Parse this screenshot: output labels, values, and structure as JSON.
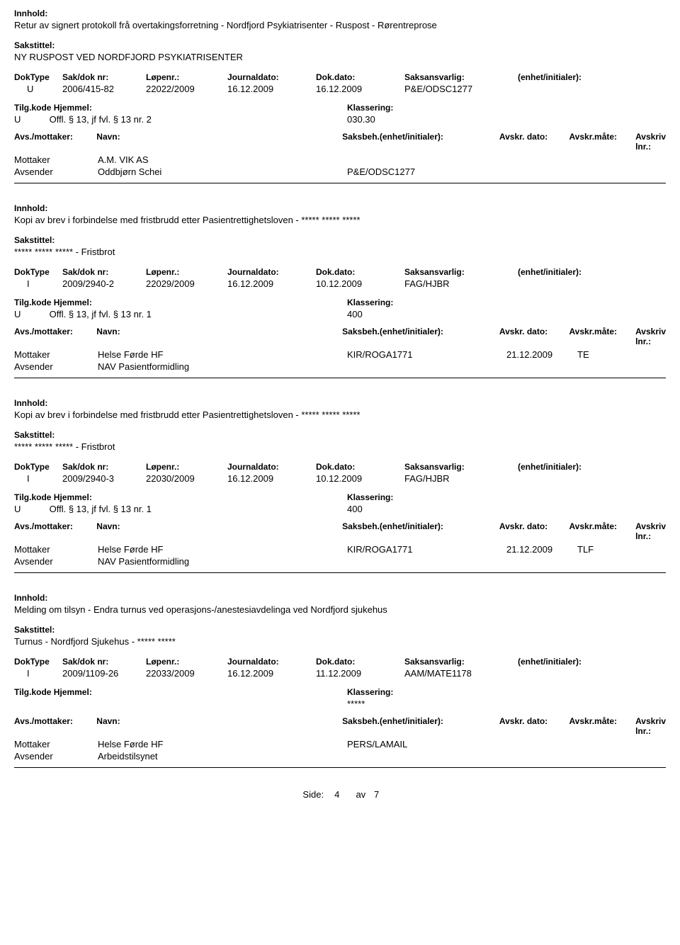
{
  "labels": {
    "innhold": "Innhold:",
    "sakstittel": "Sakstittel:",
    "doktype": "DokType",
    "saknr": "Sak/dok nr:",
    "lopenr": "Løpenr.:",
    "journaldato": "Journaldato:",
    "dokdato": "Dok.dato:",
    "saksansvarlig": "Saksansvarlig:",
    "enhet_initialer": "(enhet/initialer):",
    "tilgkode": "Tilg.kode",
    "hjemmel": "Hjemmel:",
    "klassering": "Klassering:",
    "avs_mottaker": "Avs./mottaker:",
    "navn": "Navn:",
    "saksbeh_ei": "Saksbeh.(enhet/initialer):",
    "avskr_dato": "Avskr. dato:",
    "avskr_maate": "Avskr.måte:",
    "avskriv_lnr": "Avskriv lnr.:",
    "mottaker": "Mottaker",
    "avsender": "Avsender",
    "side": "Side:",
    "av": "av"
  },
  "records": [
    {
      "innhold": "Retur av signert protokoll frå overtakingsforretning - Nordfjord Psykiatrisenter - Ruspost - Rørentreprose",
      "sakstittel": "NY RUSPOST VED NORDFJORD PSYKIATRISENTER",
      "doktype": "U",
      "saknr": "2006/415-82",
      "lopenr": "22022/2009",
      "jdato": "16.12.2009",
      "ddato": "16.12.2009",
      "saksans": "P&E/ODSC1277",
      "tilgkode": "U",
      "hjemmel": "Offl. § 13, jf fvl. § 13 nr. 2",
      "klassering": "030.30",
      "parties": [
        {
          "role": "Mottaker",
          "navn": "A.M. VIK AS",
          "saksbeh": "",
          "adato": "",
          "amaate": ""
        },
        {
          "role": "Avsender",
          "navn": "Oddbjørn  Schei",
          "saksbeh": "P&E/ODSC1277",
          "adato": "",
          "amaate": ""
        }
      ]
    },
    {
      "innhold": "Kopi av brev i forbindelse med fristbrudd etter Pasientrettighetsloven - ***** ***** *****",
      "sakstittel": "***** ***** ***** - Fristbrot",
      "doktype": "I",
      "saknr": "2009/2940-2",
      "lopenr": "22029/2009",
      "jdato": "16.12.2009",
      "ddato": "10.12.2009",
      "saksans": "FAG/HJBR",
      "tilgkode": "U",
      "hjemmel": "Offl. § 13, jf fvl. § 13 nr. 1",
      "klassering": "400",
      "parties": [
        {
          "role": "Mottaker",
          "navn": "Helse Førde HF",
          "saksbeh": "KIR/ROGA1771",
          "adato": "21.12.2009",
          "amaate": "TE"
        },
        {
          "role": "Avsender",
          "navn": "NAV Pasientformidling",
          "saksbeh": "",
          "adato": "",
          "amaate": ""
        }
      ]
    },
    {
      "innhold": "Kopi av brev i forbindelse med fristbrudd etter Pasientrettighetsloven - ***** ***** *****",
      "sakstittel": "***** ***** ***** - Fristbrot",
      "doktype": "I",
      "saknr": "2009/2940-3",
      "lopenr": "22030/2009",
      "jdato": "16.12.2009",
      "ddato": "10.12.2009",
      "saksans": "FAG/HJBR",
      "tilgkode": "U",
      "hjemmel": "Offl. § 13, jf fvl. § 13 nr. 1",
      "klassering": "400",
      "parties": [
        {
          "role": "Mottaker",
          "navn": "Helse Førde HF",
          "saksbeh": "KIR/ROGA1771",
          "adato": "21.12.2009",
          "amaate": "TLF"
        },
        {
          "role": "Avsender",
          "navn": "NAV Pasientformidling",
          "saksbeh": "",
          "adato": "",
          "amaate": ""
        }
      ]
    },
    {
      "innhold": "Melding om tilsyn - Endra turnus ved operasjons-/anestesiavdelinga ved Nordfjord sjukehus",
      "sakstittel": "Turnus -  Nordfjord Sjukehus -  ***** *****",
      "doktype": "I",
      "saknr": "2009/1109-26",
      "lopenr": "22033/2009",
      "jdato": "16.12.2009",
      "ddato": "11.12.2009",
      "saksans": "AAM/MATE1178",
      "tilgkode": "",
      "hjemmel": "",
      "klassering": "*****",
      "parties": [
        {
          "role": "Mottaker",
          "navn": "Helse Førde HF",
          "saksbeh": "PERS/LAMAIL",
          "adato": "",
          "amaate": ""
        },
        {
          "role": "Avsender",
          "navn": "Arbeidstilsynet",
          "saksbeh": "",
          "adato": "",
          "amaate": ""
        }
      ]
    }
  ],
  "pager": {
    "current": "4",
    "total": "7"
  }
}
